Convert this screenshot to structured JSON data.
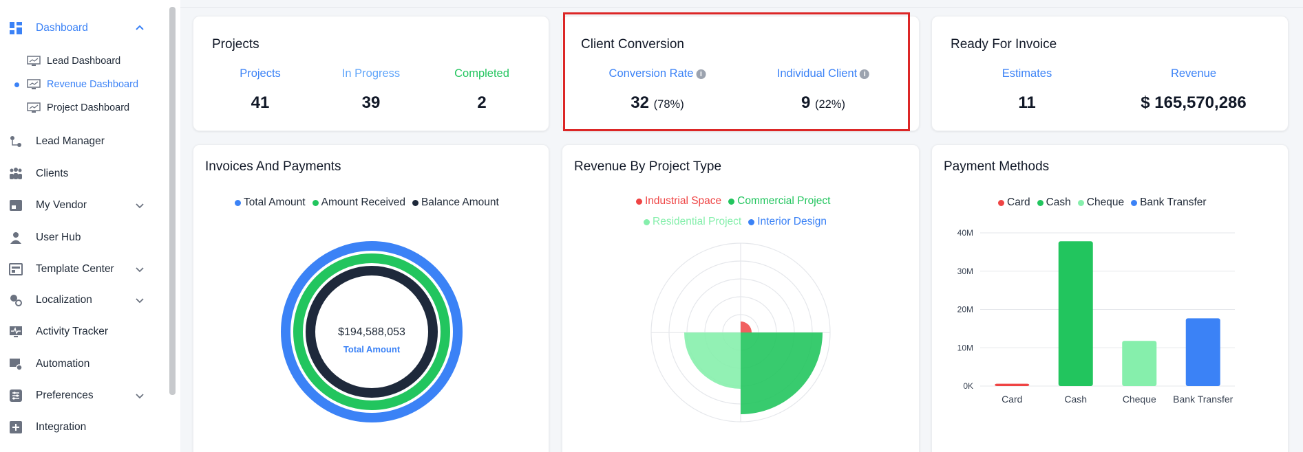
{
  "sidebar": {
    "items": [
      {
        "label": "Dashboard",
        "icon": "dashboard-icon"
      },
      {
        "label": "Lead Manager",
        "icon": "lead-manager-icon"
      },
      {
        "label": "Clients",
        "icon": "clients-icon"
      },
      {
        "label": "My Vendor",
        "icon": "vendor-icon"
      },
      {
        "label": "User Hub",
        "icon": "user-icon"
      },
      {
        "label": "Template Center",
        "icon": "template-icon"
      },
      {
        "label": "Localization",
        "icon": "localization-icon"
      },
      {
        "label": "Activity Tracker",
        "icon": "activity-icon"
      },
      {
        "label": "Automation",
        "icon": "automation-icon"
      },
      {
        "label": "Preferences",
        "icon": "preferences-icon"
      },
      {
        "label": "Integration",
        "icon": "integration-icon"
      }
    ],
    "subitems": [
      {
        "label": "Lead Dashboard"
      },
      {
        "label": "Revenue Dashboard"
      },
      {
        "label": "Project Dashboard"
      }
    ]
  },
  "projects": {
    "title": "Projects",
    "stats": [
      {
        "label": "Projects",
        "value": "41",
        "color": "#3b82f6"
      },
      {
        "label": "In Progress",
        "value": "39",
        "color": "#60a5fa"
      },
      {
        "label": "Completed",
        "value": "2",
        "color": "#22c55e"
      }
    ]
  },
  "conversion": {
    "title": "Client Conversion",
    "rate_label": "Conversion Rate",
    "rate_value": "32",
    "rate_pct": "(78%)",
    "client_label": "Individual Client",
    "client_value": "9",
    "client_pct": "(22%)",
    "info_icon": "i"
  },
  "invoice": {
    "title": "Ready For Invoice",
    "estimates_label": "Estimates",
    "estimates_value": "11",
    "revenue_label": "Revenue",
    "revenue_value": "$ 165,570,286"
  },
  "invoices_payments": {
    "title": "Invoices And Payments",
    "legend": [
      "Total Amount",
      "Amount Received",
      "Balance Amount"
    ],
    "colors": [
      "#3b82f6",
      "#22c55e",
      "#1e293b"
    ],
    "center_value": "$194,588,053",
    "center_label": "Total Amount"
  },
  "revenue_type": {
    "title": "Revenue By Project Type",
    "legend": [
      "Industrial Space",
      "Commercial Project",
      "Residential Project",
      "Interior Design"
    ],
    "colors": [
      "#ef4444",
      "#22c55e",
      "#86efac",
      "#3b82f6"
    ]
  },
  "chart_data": {
    "type": "bar",
    "title": "Payment Methods",
    "legend": [
      "Card",
      "Cash",
      "Cheque",
      "Bank Transfer"
    ],
    "categories": [
      "Card",
      "Cash",
      "Cheque",
      "Bank Transfer"
    ],
    "values": [
      0.6,
      37.8,
      11.8,
      17.7
    ],
    "colors": [
      "#ef4444",
      "#22c55e",
      "#86efac",
      "#3b82f6"
    ],
    "yticks": [
      "0K",
      "10M",
      "20M",
      "30M",
      "40M"
    ],
    "ylim": [
      0,
      40
    ],
    "grid": true,
    "legend_position": "top"
  }
}
